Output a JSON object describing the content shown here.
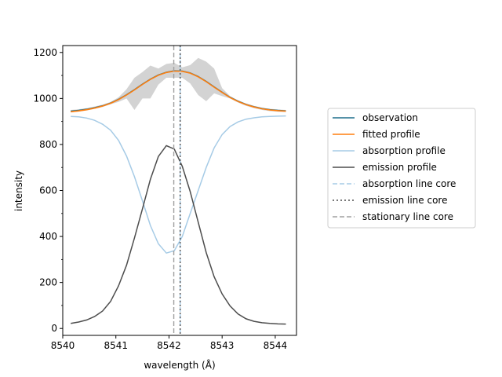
{
  "chart_data": {
    "type": "line",
    "xlabel": "wavelength (Å)",
    "ylabel": "intensity",
    "xlim": [
      8540.0,
      8544.4
    ],
    "ylim": [
      -30,
      1230
    ],
    "x_ticks": [
      8540,
      8541,
      8542,
      8543,
      8544
    ],
    "y_ticks": [
      0,
      200,
      400,
      600,
      800,
      1000,
      1200
    ],
    "grid": false,
    "legend_position": "right",
    "legend": [
      {
        "label": "observation",
        "color": "#1f6f8b",
        "dash": "solid"
      },
      {
        "label": "fitted profile",
        "color": "#ff7f0e",
        "dash": "solid"
      },
      {
        "label": "absorption profile",
        "color": "#a6cbe6",
        "dash": "solid"
      },
      {
        "label": "emission profile",
        "color": "#4d4d4d",
        "dash": "solid"
      },
      {
        "label": "absorption line core",
        "color": "#a6cbe6",
        "dash": "dashed"
      },
      {
        "label": "emission line core",
        "color": "#4d4d4d",
        "dash": "dotted"
      },
      {
        "label": "stationary line core",
        "color": "#a0a0a0",
        "dash": "dashed"
      }
    ],
    "x": [
      8540.15,
      8540.3,
      8540.45,
      8540.6,
      8540.75,
      8540.9,
      8541.05,
      8541.2,
      8541.35,
      8541.5,
      8541.65,
      8541.8,
      8541.95,
      8542.1,
      8542.25,
      8542.4,
      8542.55,
      8542.7,
      8542.85,
      8543.0,
      8543.15,
      8543.3,
      8543.45,
      8543.6,
      8543.75,
      8543.9,
      8544.05,
      8544.2
    ],
    "series": [
      {
        "name": "observation",
        "color": "#1f6f8b",
        "values": [
          945,
          948,
          953,
          960,
          968,
          980,
          996,
          1016,
          1038,
          1062,
          1084,
          1102,
          1114,
          1120,
          1119,
          1111,
          1095,
          1074,
          1050,
          1027,
          1005,
          988,
          974,
          964,
          956,
          951,
          948,
          946
        ]
      },
      {
        "name": "fitted profile",
        "color": "#ff7f0e",
        "values": [
          942,
          946,
          951,
          958,
          967,
          979,
          995,
          1015,
          1037,
          1061,
          1083,
          1101,
          1113,
          1119,
          1118,
          1110,
          1094,
          1073,
          1049,
          1026,
          1004,
          987,
          973,
          963,
          955,
          950,
          947,
          945
        ]
      },
      {
        "name": "absorption profile",
        "color": "#a6cbe6",
        "values": [
          922,
          920,
          915,
          905,
          888,
          862,
          818,
          750,
          660,
          555,
          448,
          368,
          328,
          338,
          400,
          500,
          600,
          700,
          785,
          843,
          878,
          898,
          910,
          916,
          920,
          922,
          923,
          924
        ]
      },
      {
        "name": "emission profile",
        "color": "#4d4d4d",
        "values": [
          22,
          28,
          37,
          52,
          76,
          118,
          185,
          275,
          393,
          520,
          648,
          748,
          795,
          780,
          705,
          595,
          462,
          330,
          225,
          150,
          98,
          63,
          42,
          31,
          25,
          22,
          20,
          19
        ]
      }
    ],
    "uncertainty_band": {
      "x": [
        8540.15,
        8540.3,
        8540.45,
        8540.6,
        8540.75,
        8540.9,
        8541.05,
        8541.2,
        8541.35,
        8541.5,
        8541.65,
        8541.8,
        8541.95,
        8542.1,
        8542.25,
        8542.4,
        8542.55,
        8542.7,
        8542.85,
        8543.0,
        8543.15,
        8543.3,
        8543.45,
        8543.6,
        8543.75,
        8543.9,
        8544.05,
        8544.2
      ],
      "upper": [
        950,
        953,
        958,
        965,
        973,
        985,
        1005,
        1040,
        1090,
        1115,
        1143,
        1130,
        1150,
        1155,
        1135,
        1145,
        1176,
        1160,
        1130,
        1045,
        1010,
        992,
        978,
        968,
        960,
        955,
        952,
        950
      ],
      "lower": [
        940,
        943,
        948,
        955,
        963,
        975,
        985,
        1000,
        950,
        1000,
        1000,
        1060,
        1090,
        1090,
        1090,
        1065,
        1015,
        988,
        1022,
        1010,
        1000,
        982,
        968,
        958,
        950,
        945,
        942,
        940
      ],
      "color": "#d3d3d3"
    },
    "vertical_lines": [
      {
        "name": "stationary line core",
        "x": 8542.09,
        "color": "#a0a0a0",
        "dash": "dashed"
      },
      {
        "name": "absorption line core",
        "x": 8542.21,
        "color": "#a6cbe6",
        "dash": "dashed"
      },
      {
        "name": "emission line core",
        "x": 8542.21,
        "color": "#4d4d4d",
        "dash": "dotted"
      }
    ]
  }
}
